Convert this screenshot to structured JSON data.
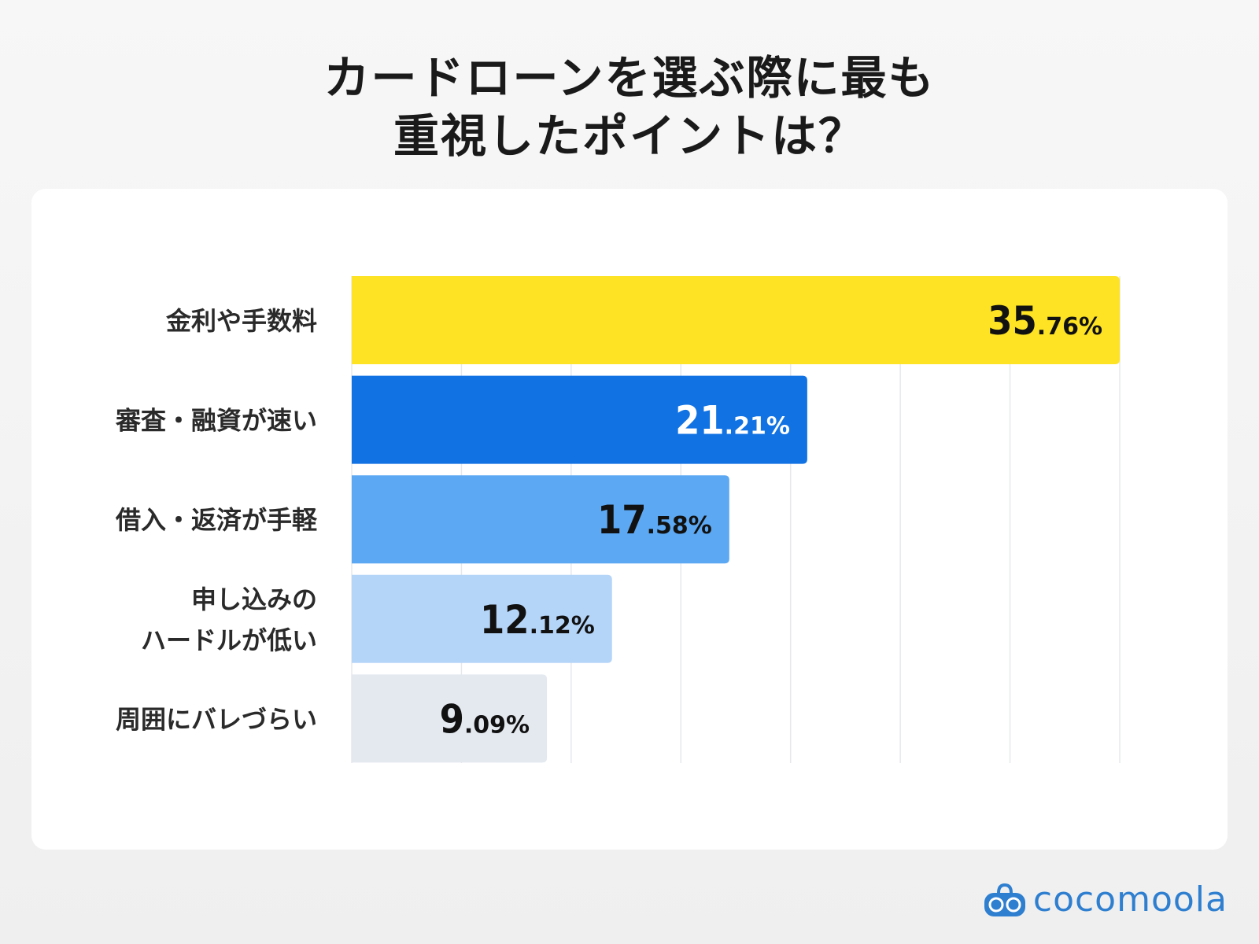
{
  "title_lines": [
    "カードローンを選ぶ際に最も",
    "重視したポイントは？"
  ],
  "brand": "cocomoola",
  "chart_data": {
    "type": "bar",
    "orientation": "horizontal",
    "title": "カードローンを選ぶ際に最も重視したポイントは？",
    "categories": [
      "金利や手数料",
      "審査・融資が速い",
      "借入・返済が手軽",
      "申し込みの\nハードルが低い",
      "周囲にバレづらい"
    ],
    "values": [
      35.76,
      21.21,
      17.58,
      12.12,
      9.09
    ],
    "value_labels": [
      [
        "35",
        ".76%"
      ],
      [
        "21",
        ".21%"
      ],
      [
        "17",
        ".58%"
      ],
      [
        "12",
        ".12%"
      ],
      [
        "9",
        ".09%"
      ]
    ],
    "unit": "%",
    "colors": [
      "#fde324",
      "#1172e3",
      "#5ca8f2",
      "#b5d5f8",
      "#e4e9f0"
    ],
    "label_colors": [
      "#111111",
      "#ffffff",
      "#111111",
      "#111111",
      "#111111"
    ],
    "xlim": [
      0,
      35.76
    ],
    "grid": true,
    "legend": "none"
  }
}
